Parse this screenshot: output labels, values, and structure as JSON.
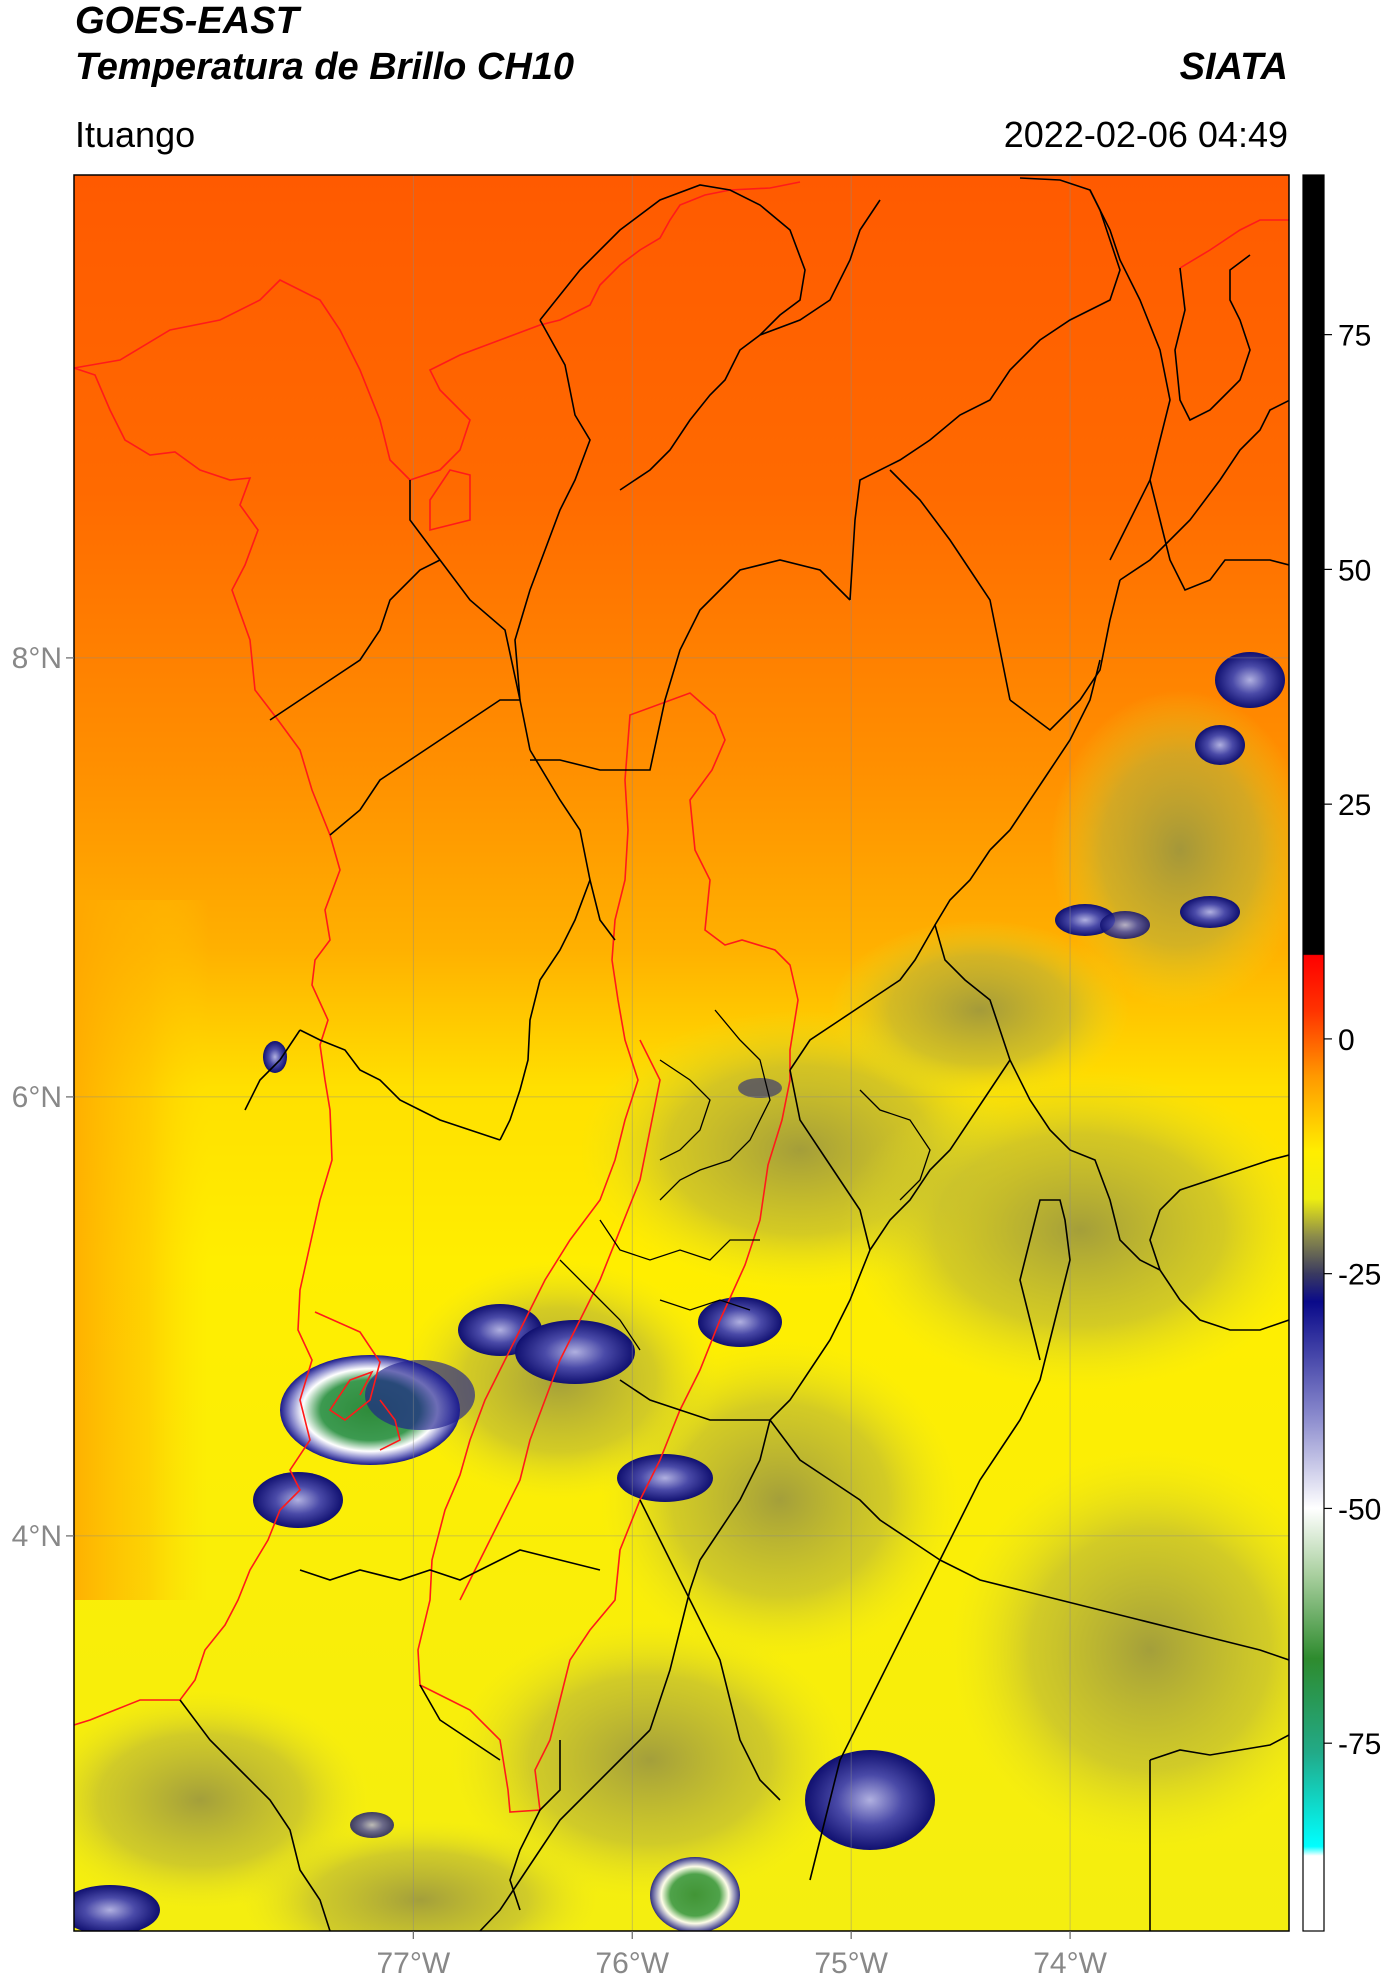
{
  "header": {
    "title": "GOES-EAST",
    "subtitle": "Temperatura de Brillo CH10",
    "organization": "SIATA",
    "location": "Ituango",
    "datetime": "2022-02-06 04:49"
  },
  "map": {
    "lon_range": [
      -78.55,
      -73.0
    ],
    "lat_range": [
      2.2,
      10.2
    ],
    "lon_ticks": [
      {
        "value": -77,
        "label": "77°W"
      },
      {
        "value": -76,
        "label": "76°W"
      },
      {
        "value": -75,
        "label": "75°W"
      },
      {
        "value": -74,
        "label": "74°W"
      }
    ],
    "lat_ticks": [
      {
        "value": 8,
        "label": "8°N"
      },
      {
        "value": 6,
        "label": "6°N"
      },
      {
        "value": 4,
        "label": "4°N"
      }
    ],
    "gridlines": true,
    "colors": {
      "warm_top": "#ff5a00",
      "orange": "#ff9a00",
      "yellow": "#ffee00",
      "olive": "#b8b43a",
      "coastline": "#ff1a1a",
      "borders": "#000000"
    }
  },
  "colorbar": {
    "range": [
      -95,
      92
    ],
    "ticks": [
      {
        "value": 75,
        "label": "75"
      },
      {
        "value": 50,
        "label": "50"
      },
      {
        "value": 25,
        "label": "25"
      },
      {
        "value": 0,
        "label": "0"
      },
      {
        "value": -25,
        "label": "-25"
      },
      {
        "value": -50,
        "label": "-50"
      },
      {
        "value": -75,
        "label": "-75"
      }
    ],
    "stops": [
      {
        "value": 92,
        "color": "#000000"
      },
      {
        "value": 9,
        "color": "#000000"
      },
      {
        "value": 8.9,
        "color": "#ff0000"
      },
      {
        "value": 3,
        "color": "#ff3300"
      },
      {
        "value": -4,
        "color": "#ff9900"
      },
      {
        "value": -12,
        "color": "#ffee00"
      },
      {
        "value": -17,
        "color": "#eeee10"
      },
      {
        "value": -21,
        "color": "#8c8c4a"
      },
      {
        "value": -25,
        "color": "#3a3a60"
      },
      {
        "value": -28,
        "color": "#0a0a8a"
      },
      {
        "value": -40,
        "color": "#8888cc"
      },
      {
        "value": -50,
        "color": "#ffffff"
      },
      {
        "value": -57,
        "color": "#aad0a0"
      },
      {
        "value": -66,
        "color": "#2e8b2e"
      },
      {
        "value": -76,
        "color": "#22aa88"
      },
      {
        "value": -86,
        "color": "#00ffff"
      },
      {
        "value": -87,
        "color": "#ffffff"
      },
      {
        "value": -95,
        "color": "#ffffff"
      }
    ]
  }
}
